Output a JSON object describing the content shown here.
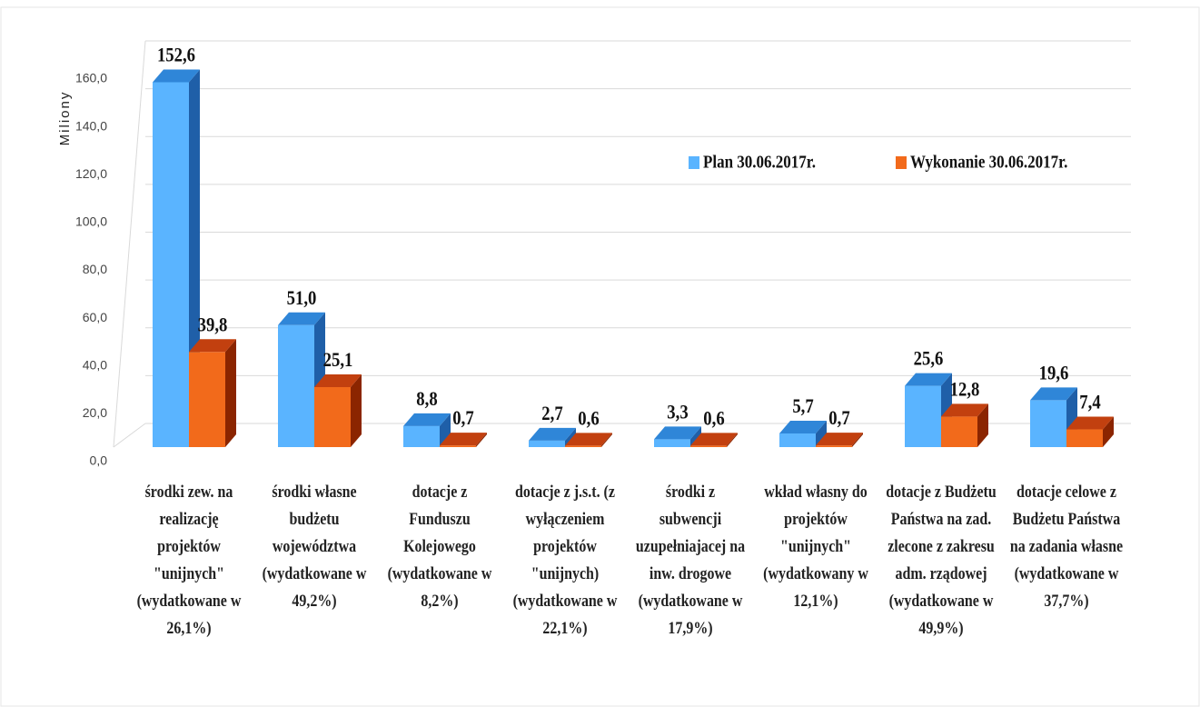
{
  "chart_data": {
    "type": "bar3d",
    "y_axis_label": "Miliony",
    "categories": [
      "środki zew. na realizację projektów \"unijnych\" (wydatkowane w 26,1%)",
      "środki własne budżetu województwa (wydatkowane w 49,2%)",
      "dotacje z Funduszu Kolejowego (wydatkowane w 8,2%)",
      "dotacje z j.s.t. (z wyłączeniem projektów \"unijnych) (wydatkowane w 22,1%)",
      "środki z subwencji uzupełniajacej na inw. drogowe (wydatkowane w 17,9%)",
      "wkład własny do projektów \"unijnych\" (wydatkowany w 12,1%)",
      "dotacje z Budżetu Państwa na zad. zlecone z zakresu adm. rządowej (wydatkowane w 49,9%)",
      "dotacje celowe z Budżetu Państwa na zadania własne (wydatkowane w 37,7%)"
    ],
    "series": [
      {
        "name": "Plan 30.06.2017r.",
        "color": "#5ab4ff",
        "side_color": "#1f5fa8",
        "top_color": "#2f86d8",
        "values": [
          152.6,
          51.0,
          8.8,
          2.7,
          3.3,
          5.7,
          25.6,
          19.6
        ],
        "value_labels": [
          "152,6",
          "51,0",
          "8,8",
          "2,7",
          "3,3",
          "5,7",
          "25,6",
          "19,6"
        ]
      },
      {
        "name": "Wykonanie 30.06.2017r.",
        "color": "#f26a1b",
        "side_color": "#8b2500",
        "top_color": "#c2400f",
        "values": [
          39.8,
          25.1,
          0.7,
          0.6,
          0.6,
          0.7,
          12.8,
          7.4
        ],
        "value_labels": [
          "39,8",
          "25,1",
          "0,7",
          "0,6",
          "0,6",
          "0,7",
          "12,8",
          "7,4"
        ]
      }
    ],
    "ylim": [
      0,
      160
    ],
    "yticks": [
      {
        "value": 0,
        "label": "0,0"
      },
      {
        "value": 20,
        "label": "20,0"
      },
      {
        "value": 40,
        "label": "40,0"
      },
      {
        "value": 60,
        "label": "60,0"
      },
      {
        "value": 80,
        "label": "80,0"
      },
      {
        "value": 100,
        "label": "100,0"
      },
      {
        "value": 120,
        "label": "120,0"
      },
      {
        "value": 140,
        "label": "140,0"
      },
      {
        "value": 160,
        "label": "160,0"
      }
    ],
    "grid": true
  }
}
